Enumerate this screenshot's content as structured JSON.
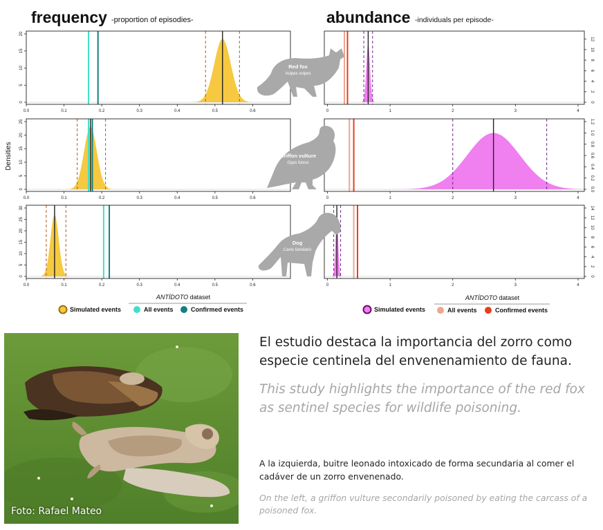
{
  "colors": {
    "frequency_fill": "#f6c940",
    "abundance_fill": "#f07ff0",
    "all_events_freq": "#3fe0c8",
    "confirmed_events_freq": "#127f82",
    "all_events_abund": "#f0a58f",
    "confirmed_events_abund": "#e63e1c",
    "simulated_freq": "#c8961e",
    "simulated_abund": "#8a1a8a",
    "mean_line": "#222222",
    "ci_line": "#b05a1e",
    "ci_line_abund": "#6a2a8a",
    "silhouette": "#a9a9a9"
  },
  "header": {
    "frequency_title": "frequency",
    "frequency_subtitle": "-proportion of episodies-",
    "abundance_title": "abundance",
    "abundance_subtitle": "-individuals per episode-"
  },
  "ylabel": "Densities",
  "species": [
    {
      "name": "Red fox",
      "latin": "Vulpes vulpes",
      "icon": "fox-silhouette-icon"
    },
    {
      "name": "Griffon vulture",
      "latin": "Gyps fulvus",
      "icon": "vulture-silhouette-icon"
    },
    {
      "name": "Dog",
      "latin": "Canis familiaris",
      "icon": "dog-silhouette-icon"
    }
  ],
  "chart_data": [
    {
      "type": "area",
      "panel": "frequency",
      "species": "Red fox",
      "xlim": [
        0,
        0.7
      ],
      "xticks": [
        "0.0",
        "0.1",
        "0.2",
        "0.3",
        "0.4",
        "0.5",
        "0.6"
      ],
      "ylim": [
        0,
        20
      ],
      "yticks": [
        "0",
        "5",
        "10",
        "15",
        "20"
      ],
      "y_axis_side": "left",
      "distribution": {
        "mean": 0.52,
        "sd": 0.022,
        "peak_density": 18.5
      },
      "ci": [
        0.475,
        0.565
      ],
      "all_events": 0.165,
      "confirmed_events": 0.19
    },
    {
      "type": "area",
      "panel": "frequency",
      "species": "Griffon vulture",
      "xlim": [
        0,
        0.7
      ],
      "xticks": [
        "0.0",
        "0.1",
        "0.2",
        "0.3",
        "0.4",
        "0.5",
        "0.6"
      ],
      "ylim": [
        0,
        25
      ],
      "yticks": [
        "0",
        "5",
        "10",
        "15",
        "20",
        "25"
      ],
      "y_axis_side": "left",
      "distribution": {
        "mean": 0.17,
        "sd": 0.017,
        "peak_density": 23
      },
      "ci": [
        0.135,
        0.21
      ],
      "all_events": 0.165,
      "confirmed_events": 0.175
    },
    {
      "type": "area",
      "panel": "frequency",
      "species": "Dog",
      "xlim": [
        0,
        0.7
      ],
      "xticks": [
        "0.0",
        "0.1",
        "0.2",
        "0.3",
        "0.4",
        "0.5",
        "0.6"
      ],
      "ylim": [
        0,
        30
      ],
      "yticks": [
        "0",
        "5",
        "10",
        "15",
        "20",
        "25",
        "30"
      ],
      "y_axis_side": "left",
      "distribution": {
        "mean": 0.075,
        "sd": 0.011,
        "peak_density": 27
      },
      "ci": [
        0.053,
        0.105
      ],
      "all_events": 0.205,
      "confirmed_events": 0.22
    },
    {
      "type": "area",
      "panel": "abundance",
      "species": "Red fox",
      "xlim": [
        -0.05,
        4.1
      ],
      "xticks": [
        "0",
        "1",
        "2",
        "3",
        "4"
      ],
      "ylim": [
        0,
        13
      ],
      "yticks": [
        "0",
        "2",
        "4",
        "6",
        "8",
        "10",
        "12"
      ],
      "y_axis_side": "right",
      "distribution": {
        "mean": 0.65,
        "sd": 0.03,
        "peak_density": 11
      },
      "ci": [
        0.58,
        0.72
      ],
      "all_events": 0.27,
      "confirmed_events": 0.32
    },
    {
      "type": "area",
      "panel": "abundance",
      "species": "Griffon vulture",
      "xlim": [
        -0.05,
        4.1
      ],
      "xticks": [
        "0",
        "1",
        "2",
        "3",
        "4"
      ],
      "ylim": [
        0,
        1.2
      ],
      "yticks": [
        "0.0",
        "0.2",
        "0.4",
        "0.6",
        "0.8",
        "1.0",
        "1.2"
      ],
      "y_axis_side": "right",
      "distribution": {
        "mean": 2.65,
        "sd": 0.42,
        "peak_density": 1.0
      },
      "ci": [
        2.0,
        3.5
      ],
      "all_events": 0.35,
      "confirmed_events": 0.42
    },
    {
      "type": "area",
      "panel": "abundance",
      "species": "Dog",
      "xlim": [
        -0.05,
        4.1
      ],
      "xticks": [
        "0",
        "1",
        "2",
        "3",
        "4"
      ],
      "ylim": [
        0,
        14
      ],
      "yticks": [
        "0",
        "2",
        "4",
        "6",
        "8",
        "10",
        "12",
        "14"
      ],
      "y_axis_side": "right",
      "distribution": {
        "mean": 0.15,
        "sd": 0.022,
        "peak_density": 12
      },
      "ci": [
        0.1,
        0.21
      ],
      "all_events": 0.42,
      "confirmed_events": 0.48
    }
  ],
  "legend_freq": {
    "dataset_title": "ANTÍDOTO",
    "dataset_suffix": " dataset",
    "simulated": "Simulated events",
    "all": "All events",
    "confirmed": "Confirmed events"
  },
  "legend_abund": {
    "dataset_title": "ANTÍDOTO",
    "dataset_suffix": " dataset",
    "simulated": "Simulated events",
    "all": "All events",
    "confirmed": "Confirmed events"
  },
  "photo_credit": "Foto: Rafael Mateo",
  "text": {
    "es_big": "El estudio destaca la importancia del zorro como especie centinela del envenenamiento de fauna.",
    "en_big": "This study highlights the importance of the red fox as sentinel species for wildlife poisoning.",
    "es_small": "A la izquierda, buitre leonado intoxicado de forma secundaria al comer el cadáver de un zorro envenenado.",
    "en_small": "On the left, a griffon vulture secondarily poisoned by eating the carcass of a poisoned fox."
  }
}
